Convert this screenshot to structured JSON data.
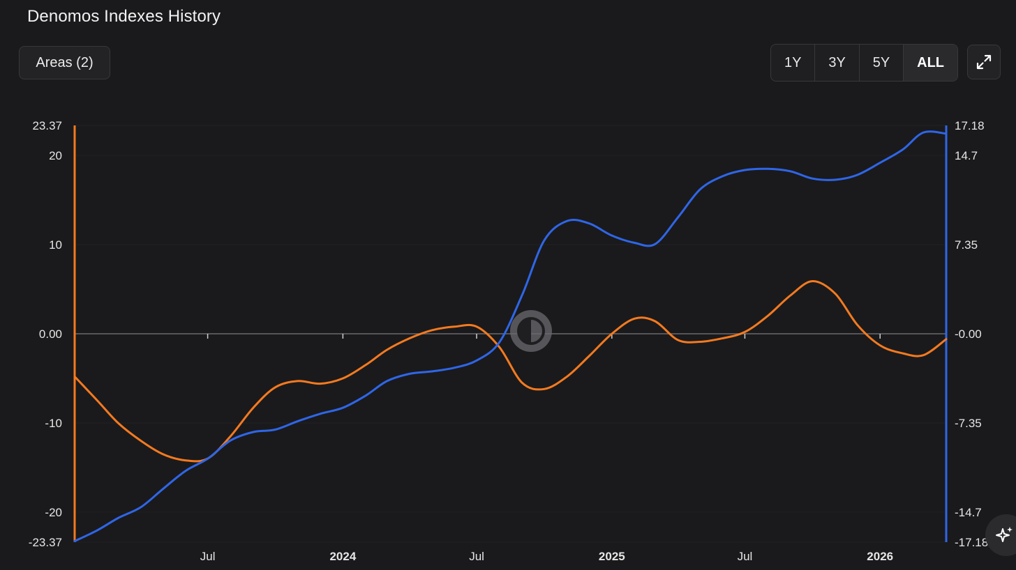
{
  "header": {
    "title": "Denomos Indexes History",
    "areas_label": "Areas (2)"
  },
  "range_buttons": [
    "1Y",
    "3Y",
    "5Y",
    "ALL"
  ],
  "range_selected": "ALL",
  "icons": {
    "expand": "expand-icon",
    "sparkle": "sparkle-icon",
    "theme_toggle": "theme-toggle-icon"
  },
  "colors": {
    "background": "#1a1a1c",
    "series_orange": "#f47a20",
    "series_blue": "#2f66e8",
    "zero_line": "#6a6a6e"
  },
  "chart_data": {
    "type": "line",
    "title": "Denomos Indexes History",
    "x_range": [
      "2023-01",
      "2026-03"
    ],
    "x_ticks": [
      {
        "label": "Jul",
        "date": "2023-07-01",
        "bold": false
      },
      {
        "label": "2024",
        "date": "2024-01-01",
        "bold": true
      },
      {
        "label": "Jul",
        "date": "2024-07-01",
        "bold": false
      },
      {
        "label": "2025",
        "date": "2025-01-01",
        "bold": true
      },
      {
        "label": "Jul",
        "date": "2025-07-01",
        "bold": false
      },
      {
        "label": "2026",
        "date": "2026-01-01",
        "bold": true
      }
    ],
    "y_left": {
      "range": [
        -23.37,
        23.37
      ],
      "tick_values": [
        23.37,
        20,
        10,
        0,
        -10,
        -20,
        -23.37
      ],
      "tick_labels": [
        "23.37",
        "20",
        "10",
        "0.00",
        "-10",
        "-20",
        "-23.37"
      ]
    },
    "y_right": {
      "range": [
        -17.18,
        17.18
      ],
      "tick_values": [
        17.18,
        14.7,
        7.35,
        0,
        -7.35,
        -14.7,
        -17.18
      ],
      "tick_labels": [
        "17.18",
        "14.7",
        "7.35",
        "-0.00",
        "-7.35",
        "-14.7",
        "-17.18"
      ]
    },
    "grid": true,
    "series": [
      {
        "axis": "left",
        "color": "#f47a20",
        "points": [
          [
            "2023-01-01",
            -4.8
          ],
          [
            "2023-02-01",
            -7.5
          ],
          [
            "2023-03-01",
            -10.0
          ],
          [
            "2023-04-01",
            -12.0
          ],
          [
            "2023-05-01",
            -13.5
          ],
          [
            "2023-06-01",
            -14.2
          ],
          [
            "2023-07-01",
            -14.0
          ],
          [
            "2023-08-01",
            -11.5
          ],
          [
            "2023-09-01",
            -8.3
          ],
          [
            "2023-10-01",
            -6.0
          ],
          [
            "2023-11-01",
            -5.3
          ],
          [
            "2023-12-01",
            -5.6
          ],
          [
            "2024-01-01",
            -5.0
          ],
          [
            "2024-02-01",
            -3.5
          ],
          [
            "2024-03-01",
            -1.8
          ],
          [
            "2024-04-01",
            -0.5
          ],
          [
            "2024-05-01",
            0.4
          ],
          [
            "2024-06-01",
            0.8
          ],
          [
            "2024-07-01",
            0.8
          ],
          [
            "2024-08-01",
            -1.5
          ],
          [
            "2024-09-01",
            -5.5
          ],
          [
            "2024-10-01",
            -6.2
          ],
          [
            "2024-11-01",
            -4.8
          ],
          [
            "2024-12-01",
            -2.5
          ],
          [
            "2025-01-01",
            0.0
          ],
          [
            "2025-02-01",
            1.7
          ],
          [
            "2025-03-01",
            1.4
          ],
          [
            "2025-04-01",
            -0.7
          ],
          [
            "2025-05-01",
            -0.9
          ],
          [
            "2025-06-01",
            -0.5
          ],
          [
            "2025-07-01",
            0.2
          ],
          [
            "2025-08-01",
            2.0
          ],
          [
            "2025-09-01",
            4.3
          ],
          [
            "2025-10-01",
            5.9
          ],
          [
            "2025-11-01",
            4.5
          ],
          [
            "2025-12-01",
            1.0
          ],
          [
            "2026-01-01",
            -1.3
          ],
          [
            "2026-02-01",
            -2.2
          ],
          [
            "2026-03-01",
            -2.4
          ],
          [
            "2026-04-01",
            -0.6
          ]
        ]
      },
      {
        "axis": "right",
        "color": "#2f66e8",
        "points": [
          [
            "2023-01-01",
            -17.1
          ],
          [
            "2023-02-01",
            -16.2
          ],
          [
            "2023-03-01",
            -15.2
          ],
          [
            "2023-04-01",
            -14.3
          ],
          [
            "2023-05-01",
            -12.8
          ],
          [
            "2023-06-01",
            -11.3
          ],
          [
            "2023-07-01",
            -10.3
          ],
          [
            "2023-08-01",
            -8.8
          ],
          [
            "2023-09-01",
            -8.1
          ],
          [
            "2023-10-01",
            -7.9
          ],
          [
            "2023-11-01",
            -7.2
          ],
          [
            "2023-12-01",
            -6.6
          ],
          [
            "2024-01-01",
            -6.1
          ],
          [
            "2024-02-01",
            -5.1
          ],
          [
            "2024-03-01",
            -3.9
          ],
          [
            "2024-04-01",
            -3.3
          ],
          [
            "2024-05-01",
            -3.1
          ],
          [
            "2024-06-01",
            -2.8
          ],
          [
            "2024-07-01",
            -2.2
          ],
          [
            "2024-08-01",
            -0.7
          ],
          [
            "2024-09-01",
            3.2
          ],
          [
            "2024-10-01",
            7.7
          ],
          [
            "2024-11-01",
            9.3
          ],
          [
            "2024-12-01",
            9.1
          ],
          [
            "2025-01-01",
            8.1
          ],
          [
            "2025-02-01",
            7.5
          ],
          [
            "2025-03-01",
            7.4
          ],
          [
            "2025-04-01",
            9.6
          ],
          [
            "2025-05-01",
            11.9
          ],
          [
            "2025-06-01",
            13.0
          ],
          [
            "2025-07-01",
            13.5
          ],
          [
            "2025-08-01",
            13.6
          ],
          [
            "2025-09-01",
            13.4
          ],
          [
            "2025-10-01",
            12.8
          ],
          [
            "2025-11-01",
            12.7
          ],
          [
            "2025-12-01",
            13.1
          ],
          [
            "2026-01-01",
            14.1
          ],
          [
            "2026-02-01",
            15.2
          ],
          [
            "2026-03-01",
            16.6
          ],
          [
            "2026-04-01",
            16.5
          ]
        ]
      }
    ]
  }
}
